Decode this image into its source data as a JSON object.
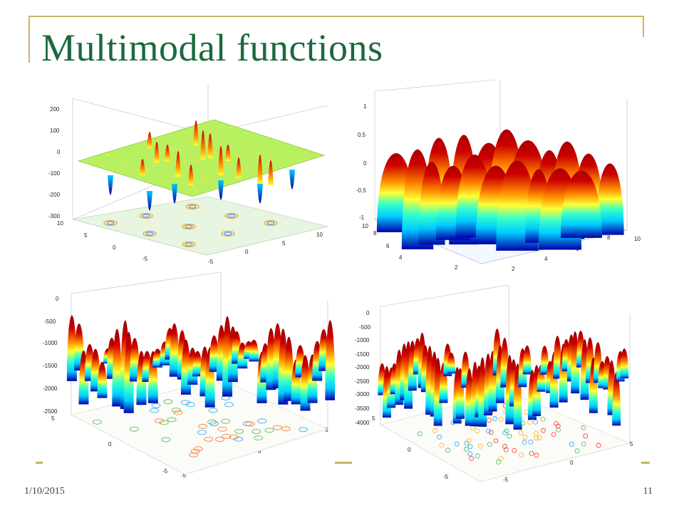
{
  "slide": {
    "title": "Multimodal functions",
    "date": "1/10/2015",
    "page_number": "11"
  },
  "plots": [
    {
      "name": "top-left",
      "z_ticks": [
        "200",
        "100",
        "0",
        "-100",
        "-200",
        "-300"
      ],
      "y_ticks": [
        "10",
        "5",
        "0",
        "-5"
      ],
      "x_ticks": [
        "-5",
        "0",
        "5",
        "10"
      ]
    },
    {
      "name": "top-right",
      "z_ticks": [
        "1",
        "0.5",
        "0",
        "-0.5",
        "-1"
      ],
      "y_ticks": [
        "10",
        "8",
        "6",
        "4",
        "2"
      ],
      "x_ticks": [
        "2",
        "4",
        "6",
        "8",
        "10"
      ]
    },
    {
      "name": "bottom-left",
      "z_ticks": [
        "0",
        "-500",
        "-1000",
        "-1500",
        "-2000",
        "-2500"
      ],
      "y_ticks": [
        "5",
        "0",
        "-5"
      ],
      "x_ticks": [
        "-5",
        "0",
        "5"
      ]
    },
    {
      "name": "bottom-right",
      "z_ticks": [
        "0",
        "-500",
        "-1000",
        "-1500",
        "-2000",
        "-2500",
        "-3000",
        "-3500",
        "-4000"
      ],
      "y_ticks": [
        "5",
        "0",
        "-5"
      ],
      "x_ticks": [
        "-5",
        "0",
        "5"
      ]
    }
  ],
  "colors": {
    "title": "#1a6a3c",
    "frame": "#c8b560",
    "peak": "#cc0000",
    "mid": "#ffff33",
    "low": "#00ccff",
    "trough": "#0000aa"
  }
}
